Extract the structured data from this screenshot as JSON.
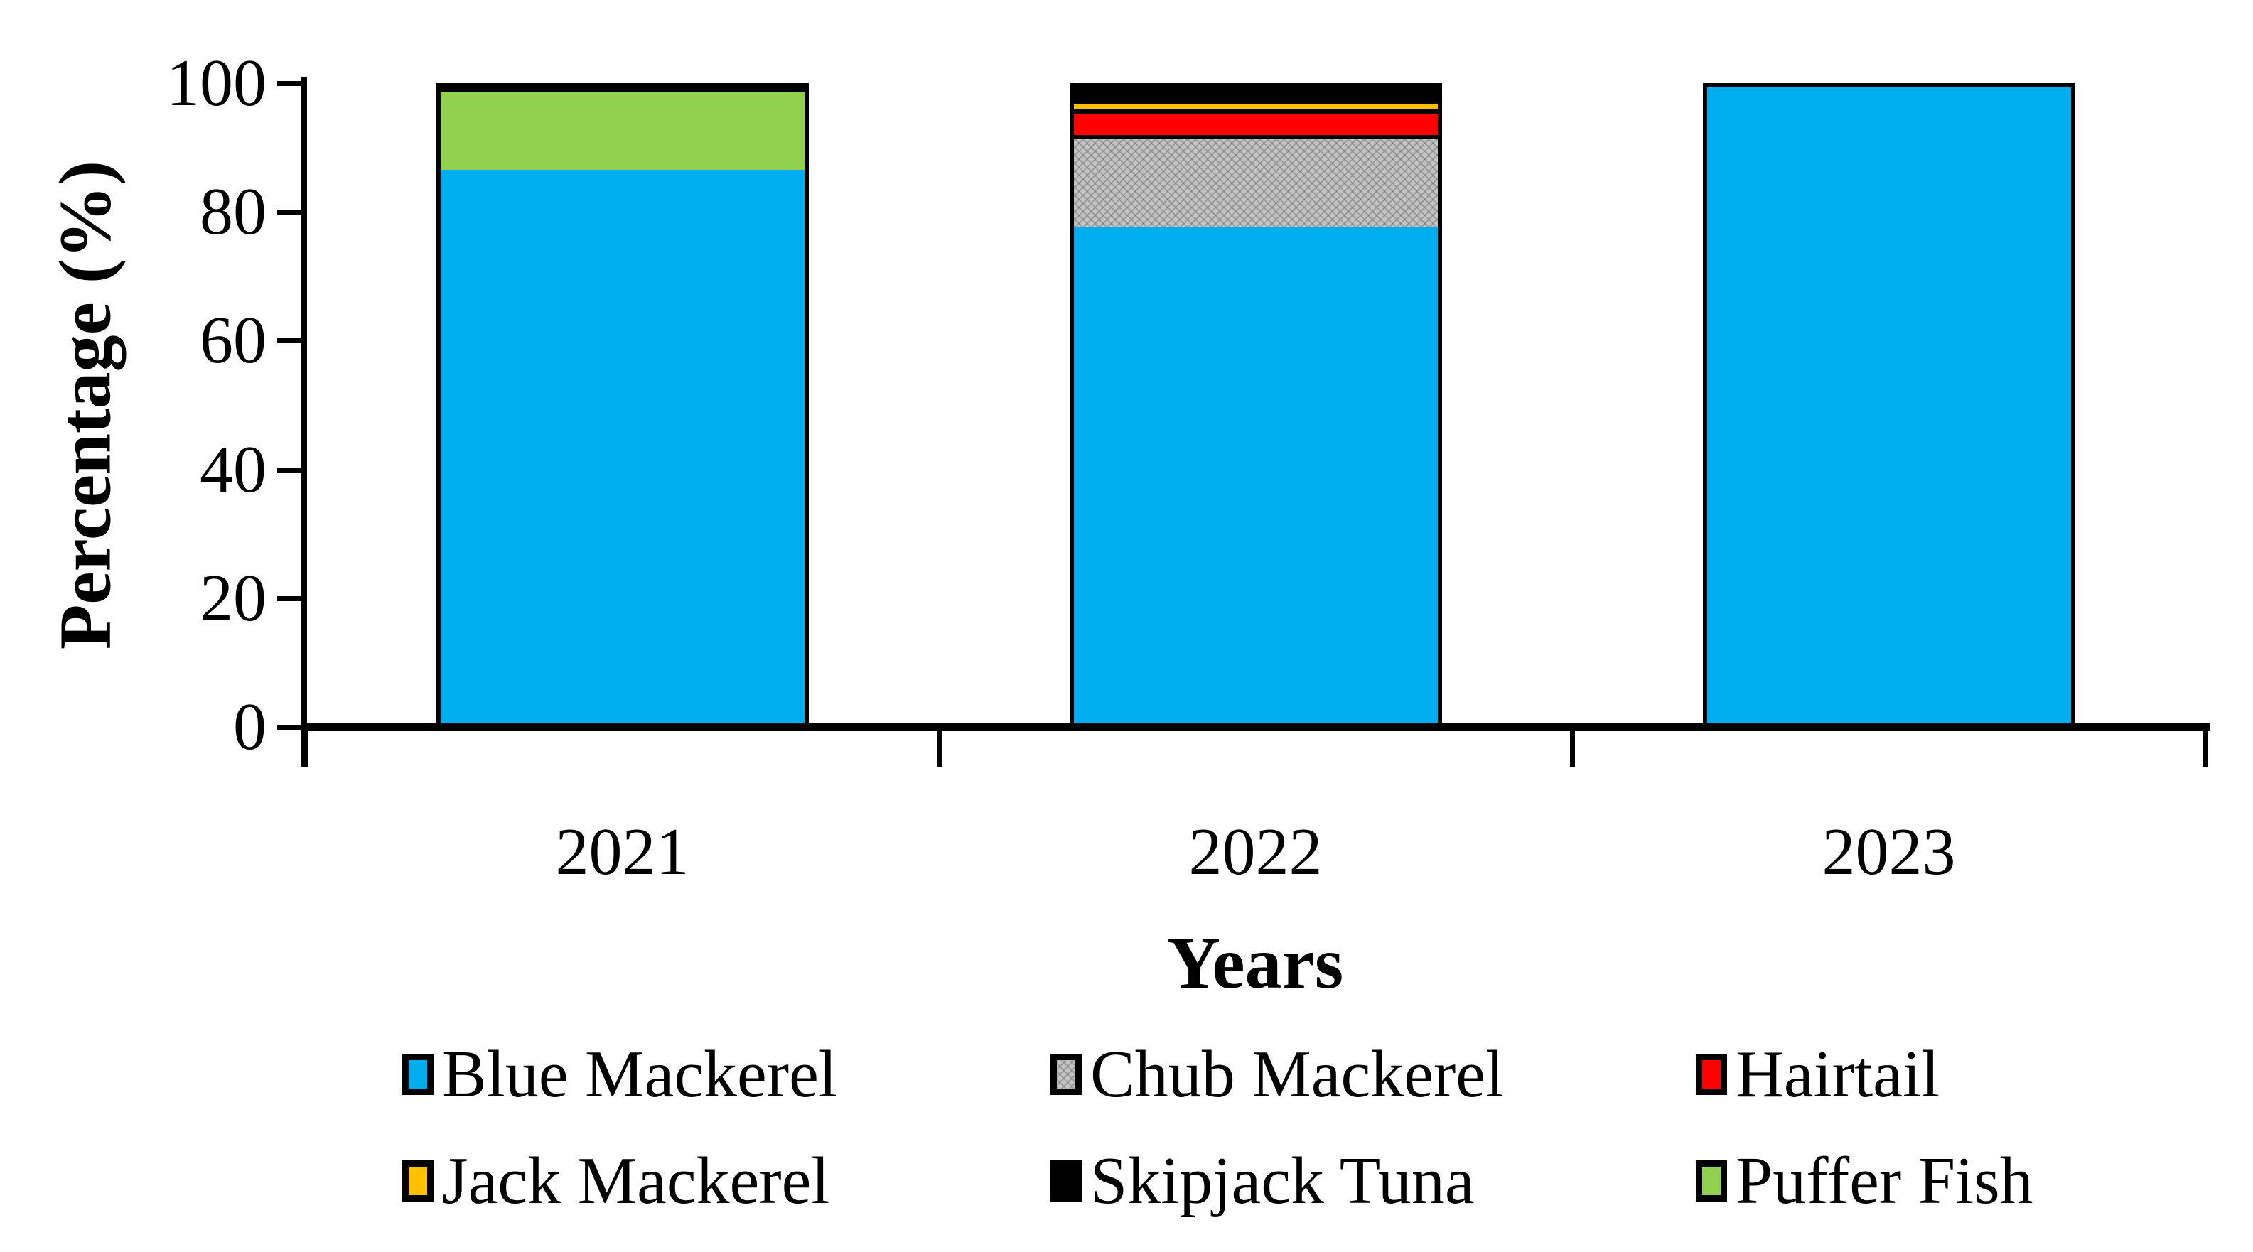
{
  "chart_data": {
    "type": "bar",
    "stacked": true,
    "title": "",
    "xlabel": "Years",
    "ylabel": "Percentage (%)",
    "categories": [
      "2021",
      "2022",
      "2023"
    ],
    "series": [
      {
        "name": "Blue Mackerel",
        "color": "#00AEEF",
        "pattern": "solid",
        "values": [
          87,
          78,
          100
        ]
      },
      {
        "name": "Chub Mackerel",
        "color": "#C3C3C3",
        "pattern": "texture",
        "values": [
          0,
          14.5,
          0
        ]
      },
      {
        "name": "Hairtail",
        "color": "#FF0000",
        "pattern": "solid",
        "values": [
          0,
          4,
          0
        ]
      },
      {
        "name": "Jack Mackerel",
        "color": "#FFC000",
        "pattern": "solid",
        "values": [
          0,
          1.5,
          0
        ]
      },
      {
        "name": "Skipjack Tuna",
        "color": "#000000",
        "pattern": "solid",
        "values": [
          0,
          2,
          0
        ]
      },
      {
        "name": "Puffer Fish",
        "color": "#92D050",
        "pattern": "solid",
        "values": [
          13,
          0,
          0
        ]
      }
    ],
    "ylim": [
      0,
      100
    ],
    "yticks": [
      0,
      20,
      40,
      60,
      80,
      100
    ],
    "grid": false,
    "legend_position": "bottom",
    "legend_rows": 2,
    "legend_columns": 3,
    "bar_outline_color": "#000000",
    "axis_color": "#000000"
  }
}
